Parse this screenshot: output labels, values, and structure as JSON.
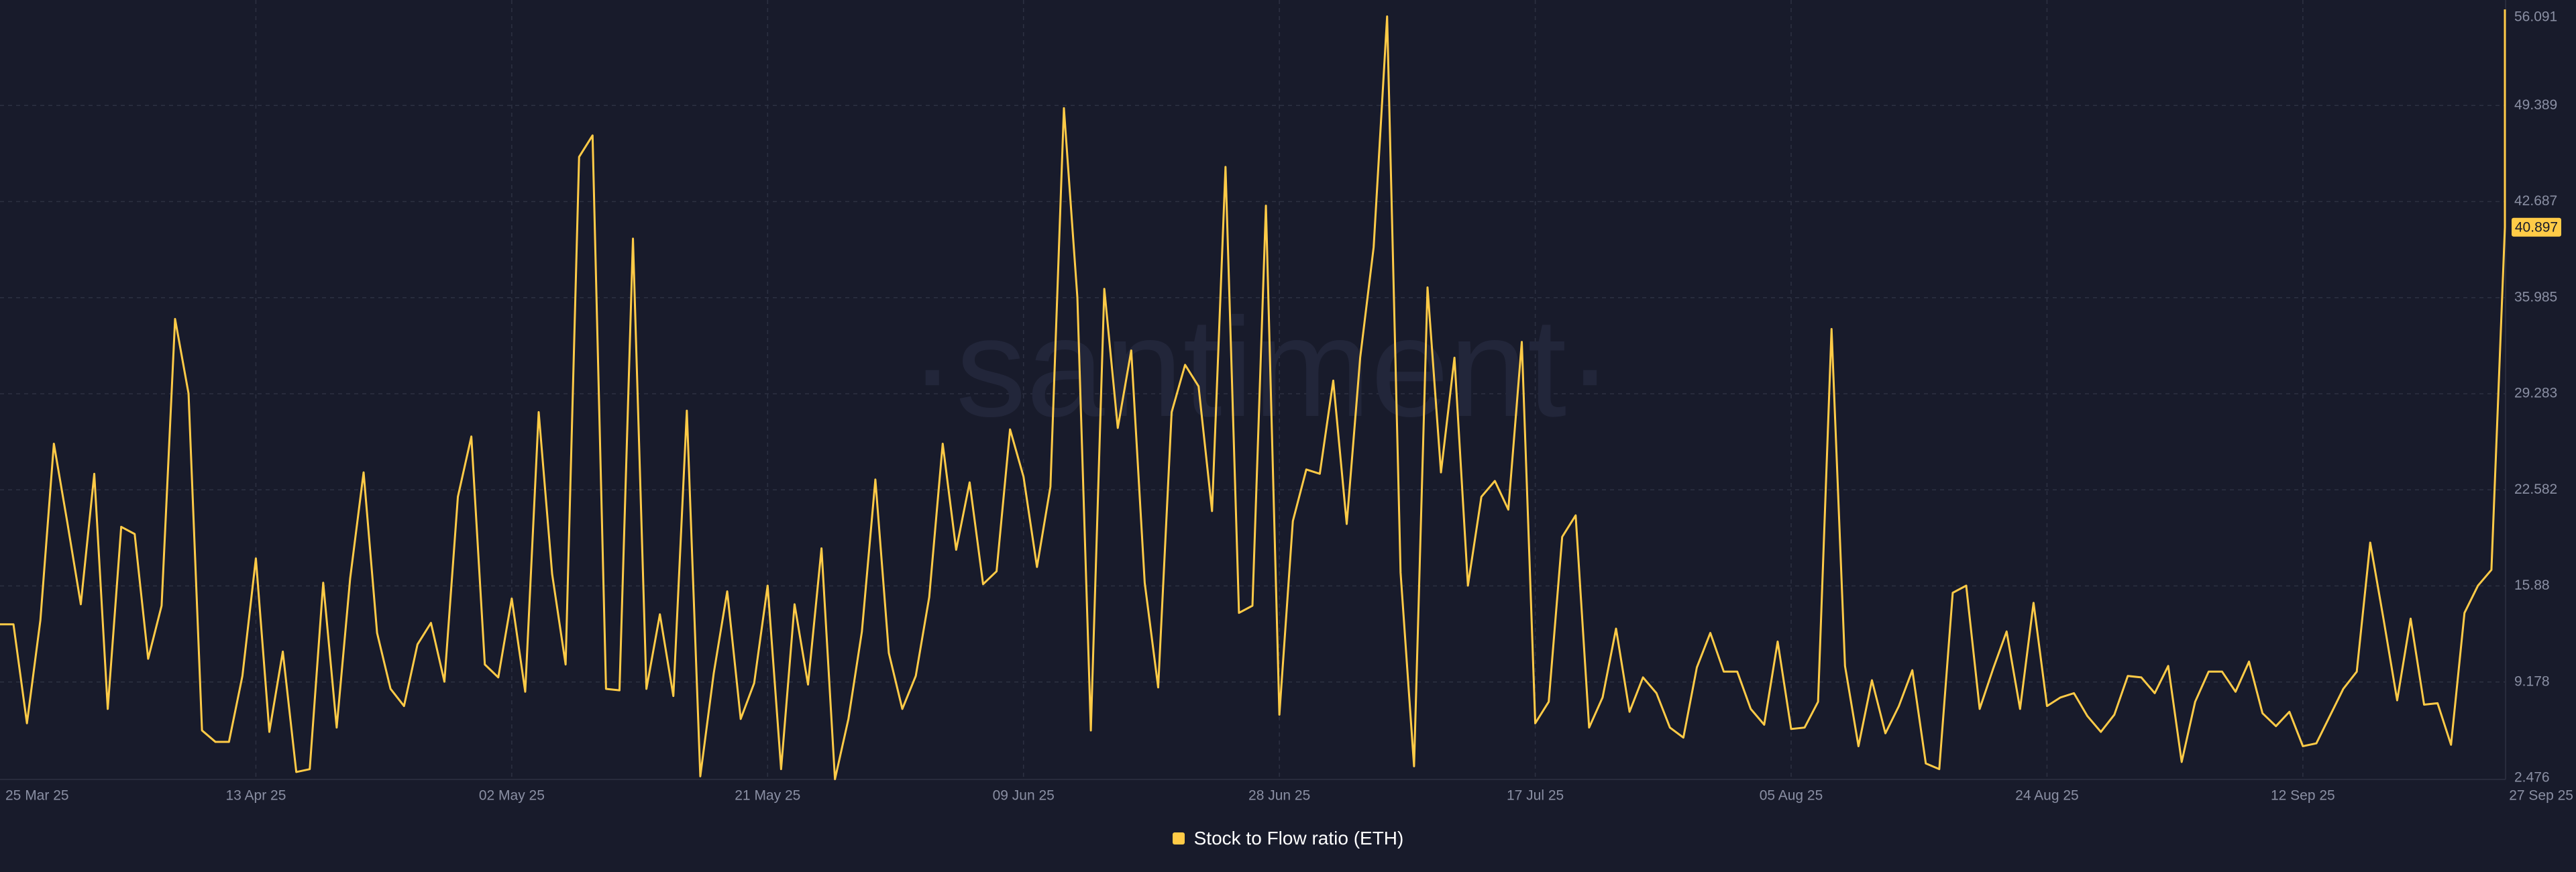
{
  "watermark": "·santiment·",
  "colors": {
    "background": "#181b2b",
    "line": "#ffcb47",
    "grid": "#2d3142",
    "tick_text": "#8a8fa3",
    "last_value_label_bg": "#ffcb47",
    "last_value_label_text": "#181b2b"
  },
  "legend": {
    "label": "Stock to Flow ratio (ETH)"
  },
  "last_value_label": "40.897",
  "chart_data": {
    "type": "line",
    "title": "",
    "xlabel": "",
    "ylabel": "",
    "ylim": [
      2.476,
      56.091
    ],
    "y_ticks": [
      "56.091",
      "49.389",
      "42.687",
      "35.985",
      "29.283",
      "22.582",
      "15.88",
      "9.178",
      "2.476"
    ],
    "x_ticks": [
      "25 Mar 25",
      "13 Apr 25",
      "02 May 25",
      "21 May 25",
      "09 Jun 25",
      "28 Jun 25",
      "17 Jul 25",
      "05 Aug 25",
      "24 Aug 25",
      "12 Sep 25",
      "27 Sep 25"
    ],
    "grid": true,
    "legend_position": "bottom-center",
    "x_start": "2025-03-25",
    "x_end": "2025-09-27",
    "series": [
      {
        "name": "Stock to Flow ratio (ETH)",
        "color": "#ffcb47",
        "x": [
          "2025-03-25",
          "2025-03-26",
          "2025-03-27",
          "2025-03-28",
          "2025-03-29",
          "2025-03-30",
          "2025-03-31",
          "2025-04-01",
          "2025-04-02",
          "2025-04-03",
          "2025-04-04",
          "2025-04-05",
          "2025-04-06",
          "2025-04-07",
          "2025-04-08",
          "2025-04-09",
          "2025-04-10",
          "2025-04-11",
          "2025-04-12",
          "2025-04-13",
          "2025-04-14",
          "2025-04-15",
          "2025-04-16",
          "2025-04-17",
          "2025-04-18",
          "2025-04-19",
          "2025-04-20",
          "2025-04-21",
          "2025-04-22",
          "2025-04-23",
          "2025-04-24",
          "2025-04-25",
          "2025-04-26",
          "2025-04-27",
          "2025-04-28",
          "2025-04-29",
          "2025-04-30",
          "2025-05-01",
          "2025-05-02",
          "2025-05-03",
          "2025-05-04",
          "2025-05-05",
          "2025-05-06",
          "2025-05-07",
          "2025-05-08",
          "2025-05-09",
          "2025-05-10",
          "2025-05-11",
          "2025-05-12",
          "2025-05-13",
          "2025-05-14",
          "2025-05-15",
          "2025-05-16",
          "2025-05-17",
          "2025-05-18",
          "2025-05-19",
          "2025-05-20",
          "2025-05-21",
          "2025-05-22",
          "2025-05-23",
          "2025-05-24",
          "2025-05-25",
          "2025-05-26",
          "2025-05-27",
          "2025-05-28",
          "2025-05-29",
          "2025-05-30",
          "2025-05-31",
          "2025-06-01",
          "2025-06-02",
          "2025-06-03",
          "2025-06-04",
          "2025-06-05",
          "2025-06-06",
          "2025-06-07",
          "2025-06-08",
          "2025-06-09",
          "2025-06-10",
          "2025-06-11",
          "2025-06-12",
          "2025-06-13",
          "2025-06-14",
          "2025-06-15",
          "2025-06-16",
          "2025-06-17",
          "2025-06-18",
          "2025-06-19",
          "2025-06-20",
          "2025-06-21",
          "2025-06-22",
          "2025-06-23",
          "2025-06-24",
          "2025-06-25",
          "2025-06-26",
          "2025-06-27",
          "2025-06-28",
          "2025-06-29",
          "2025-06-30",
          "2025-07-01",
          "2025-07-02",
          "2025-07-03",
          "2025-07-04",
          "2025-07-05",
          "2025-07-06",
          "2025-07-07",
          "2025-07-08",
          "2025-07-09",
          "2025-07-10",
          "2025-07-11",
          "2025-07-12",
          "2025-07-13",
          "2025-07-14",
          "2025-07-15",
          "2025-07-16",
          "2025-07-17",
          "2025-07-18",
          "2025-07-19",
          "2025-07-20",
          "2025-07-21",
          "2025-07-22",
          "2025-07-23",
          "2025-07-24",
          "2025-07-25",
          "2025-07-26",
          "2025-07-27",
          "2025-07-28",
          "2025-07-29",
          "2025-07-30",
          "2025-07-31",
          "2025-08-01",
          "2025-08-02",
          "2025-08-03",
          "2025-08-04",
          "2025-08-05",
          "2025-08-06",
          "2025-08-07",
          "2025-08-08",
          "2025-08-09",
          "2025-08-10",
          "2025-08-11",
          "2025-08-12",
          "2025-08-13",
          "2025-08-14",
          "2025-08-15",
          "2025-08-16",
          "2025-08-17",
          "2025-08-18",
          "2025-08-19",
          "2025-08-20",
          "2025-08-21",
          "2025-08-22",
          "2025-08-23",
          "2025-08-24",
          "2025-08-25",
          "2025-08-26",
          "2025-08-27",
          "2025-08-28",
          "2025-08-29",
          "2025-08-30",
          "2025-08-31",
          "2025-09-01",
          "2025-09-02",
          "2025-09-03",
          "2025-09-04",
          "2025-09-05",
          "2025-09-06",
          "2025-09-07",
          "2025-09-08",
          "2025-09-09",
          "2025-09-10",
          "2025-09-11",
          "2025-09-12",
          "2025-09-13",
          "2025-09-14",
          "2025-09-15",
          "2025-09-16",
          "2025-09-17",
          "2025-09-18",
          "2025-09-19",
          "2025-09-20",
          "2025-09-21",
          "2025-09-22",
          "2025-09-23",
          "2025-09-24",
          "2025-09-25",
          "2025-09-26",
          "2025-09-27"
        ],
        "values": [
          13.2,
          13.2,
          6.3,
          13.5,
          25.8,
          20.3,
          14.6,
          23.7,
          7.3,
          20.0,
          19.5,
          10.8,
          14.5,
          34.5,
          29.3,
          5.8,
          5.0,
          5.0,
          9.6,
          17.8,
          5.7,
          11.3,
          2.9,
          3.1,
          16.1,
          6.0,
          16.4,
          23.8,
          12.6,
          8.7,
          7.5,
          11.8,
          13.3,
          9.2,
          22.1,
          26.3,
          10.4,
          9.5,
          15.0,
          8.5,
          28.0,
          16.7,
          10.4,
          45.8,
          47.3,
          8.7,
          8.6,
          40.1,
          8.7,
          13.9,
          8.2,
          28.1,
          2.6,
          9.8,
          15.5,
          6.6,
          9.1,
          15.9,
          3.1,
          14.6,
          9.0,
          18.5,
          2.4,
          6.6,
          12.7,
          23.3,
          11.2,
          7.3,
          9.6,
          15.1,
          25.8,
          18.4,
          23.1,
          16.0,
          16.9,
          26.8,
          23.5,
          17.2,
          22.8,
          49.2,
          36.0,
          5.8,
          36.6,
          26.9,
          32.3,
          16.1,
          8.8,
          28.0,
          31.3,
          29.8,
          21.1,
          45.1,
          14.0,
          14.5,
          42.4,
          6.9,
          20.4,
          24.0,
          23.7,
          30.2,
          20.2,
          31.8,
          39.5,
          55.6,
          16.8,
          3.3,
          36.7,
          23.8,
          31.8,
          15.9,
          22.1,
          23.2,
          21.2,
          32.9,
          6.3,
          7.8,
          19.3,
          20.8,
          6.0,
          8.1,
          12.9,
          7.1,
          9.5,
          8.4,
          6.0,
          5.3,
          10.2,
          12.6,
          9.9,
          9.9,
          7.3,
          6.2,
          12.0,
          5.9,
          6.0,
          7.8,
          33.8,
          10.3,
          4.7,
          9.3,
          5.6,
          7.5,
          10.0,
          3.5,
          3.1,
          15.4,
          15.9,
          7.3,
          10.1,
          12.7,
          7.3,
          14.7,
          7.5,
          8.1,
          8.4,
          6.8,
          5.7,
          6.9,
          9.6,
          9.5,
          8.4,
          10.3,
          3.6,
          7.8,
          9.9,
          9.9,
          8.5,
          10.6,
          7.0,
          6.1,
          7.1,
          4.7,
          4.9,
          6.8,
          8.7,
          9.9,
          18.9,
          13.5,
          7.9,
          13.6,
          7.6,
          7.7,
          4.8,
          14.0,
          15.9,
          17.0,
          40.897
        ]
      }
    ]
  }
}
